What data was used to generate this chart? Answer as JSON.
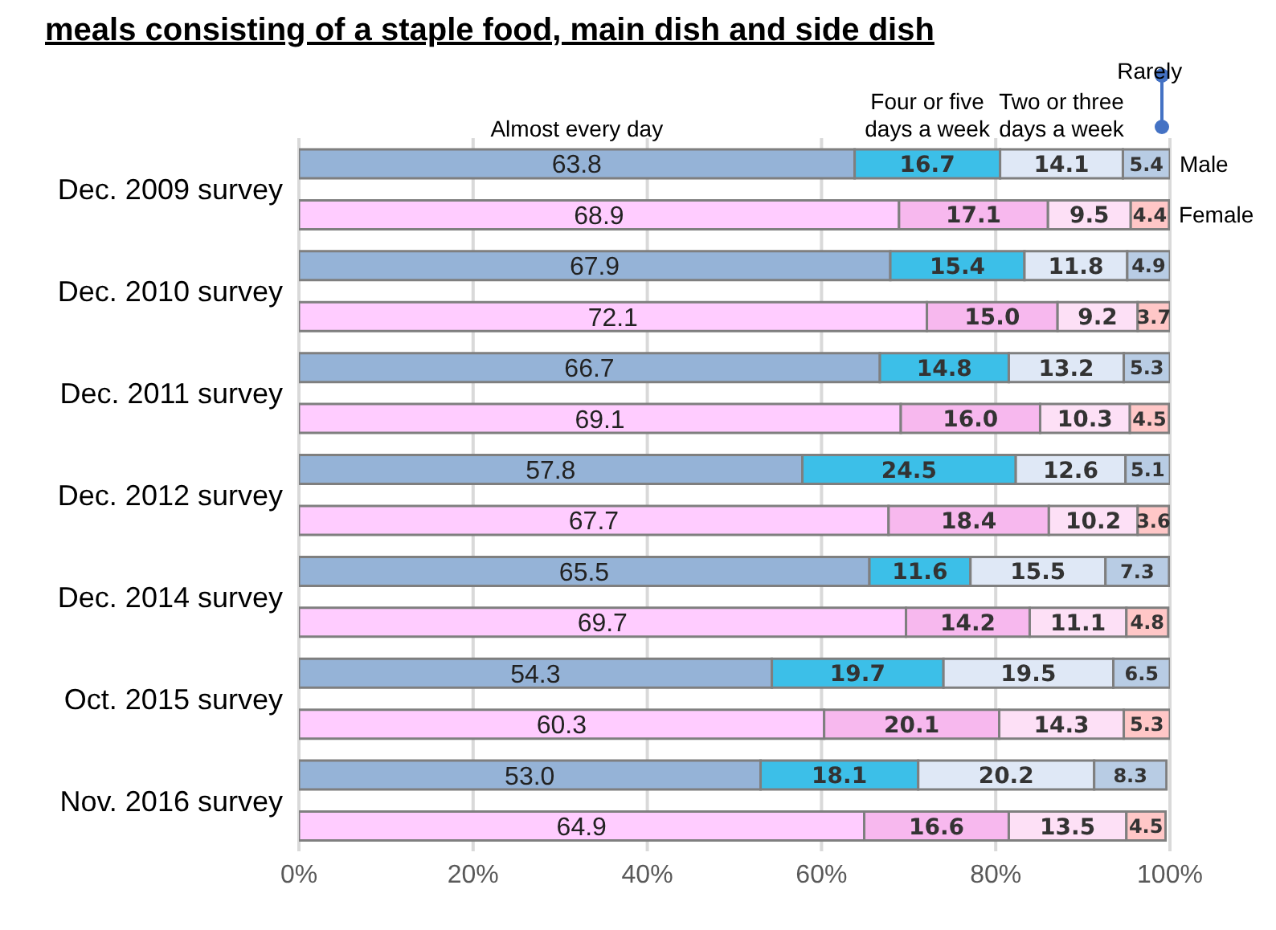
{
  "chart_data": {
    "type": "bar",
    "orientation": "horizontal",
    "stacked": true,
    "title": "meals consisting of a staple food, main dish and side dish",
    "categories": [
      "Dec. 2009 survey",
      null,
      "Dec. 2010 survey",
      null,
      "Dec. 2011 survey",
      null,
      "Dec. 2012 survey",
      null,
      "Dec. 2014 survey",
      null,
      "Oct. 2015 survey",
      null,
      "Nov. 2016 survey",
      null
    ],
    "series": [
      {
        "name": "Almost every day",
        "colors": [
          "#95b3d7",
          "#ffccff",
          "#95b3d7",
          "#ffccff",
          "#95b3d7",
          "#ffccff",
          "#95b3d7",
          "#ffccff",
          "#95b3d7",
          "#ffccff",
          "#95b3d7",
          "#ffccff",
          "#95b3d7",
          "#ffccff"
        ],
        "values": [
          63.8,
          68.9,
          67.9,
          72.1,
          66.7,
          69.1,
          57.8,
          67.7,
          65.5,
          69.7,
          54.3,
          60.3,
          53.0,
          64.9
        ],
        "value_labels": [
          "63.8",
          "68.9",
          "67.9",
          "72.1",
          "66.7",
          "69.1",
          "57.8",
          "67.7",
          "65.5",
          "69.7",
          "54.3",
          "60.3",
          "53.0",
          "64.9"
        ]
      },
      {
        "name": "Four or five days a week",
        "colors": [
          "#3cbfe8",
          "#f7b8ee",
          "#3cbfe8",
          "#f7b8ee",
          "#3cbfe8",
          "#f7b8ee",
          "#3cbfe8",
          "#f7b8ee",
          "#3cbfe8",
          "#f7b8ee",
          "#3cbfe8",
          "#f7b8ee",
          "#3cbfe8",
          "#f7b8ee"
        ],
        "values": [
          16.7,
          17.1,
          15.4,
          15.0,
          14.8,
          16.0,
          24.5,
          18.4,
          11.6,
          14.2,
          19.7,
          20.1,
          18.1,
          16.6
        ],
        "value_labels": [
          "16.7",
          "17.1",
          "15.4",
          "15.0",
          "14.8",
          "16.0",
          "24.5",
          "18.4",
          "11.6",
          "14.2",
          "19.7",
          "20.1",
          "18.1",
          "16.6"
        ]
      },
      {
        "name": "Two or three days a week",
        "colors": [
          "#dfe8f6",
          "#fde0f6",
          "#dfe8f6",
          "#fde0f6",
          "#dfe8f6",
          "#fde0f6",
          "#dfe8f6",
          "#fde0f6",
          "#dfe8f6",
          "#fde0f6",
          "#dfe8f6",
          "#fde0f6",
          "#dfe8f6",
          "#fde0f6"
        ],
        "values": [
          14.1,
          9.5,
          11.8,
          9.2,
          13.2,
          10.3,
          12.6,
          10.2,
          15.5,
          11.1,
          19.5,
          14.3,
          20.2,
          13.5
        ],
        "value_labels": [
          "14.1",
          "9.5",
          "11.8",
          "9.2",
          "13.2",
          "10.3",
          "12.6",
          "10.2",
          "15.5",
          "11.1",
          "19.5",
          "14.3",
          "20.2",
          "13.5"
        ]
      },
      {
        "name": "Rarely",
        "colors": [
          "#b8cce4",
          "#ffc7c7",
          "#b8cce4",
          "#ffc7c7",
          "#b8cce4",
          "#ffc7c7",
          "#b8cce4",
          "#ffc7c7",
          "#b8cce4",
          "#ffc7c7",
          "#b8cce4",
          "#ffc7c7",
          "#b8cce4",
          "#ffc7c7"
        ],
        "values": [
          5.4,
          4.4,
          4.9,
          3.7,
          5.3,
          4.5,
          5.1,
          3.6,
          7.3,
          4.8,
          6.5,
          5.3,
          8.3,
          4.5
        ],
        "value_labels": [
          "5.4",
          "4.4",
          "4.9",
          "3.7",
          "5.3",
          "4.5",
          "5.1",
          "3.6",
          "7.3",
          "4.8",
          "6.5",
          "5.3",
          "8.3",
          "4.5"
        ]
      }
    ],
    "annotations": [
      "Male",
      "Female"
    ],
    "xlim": [
      0,
      100
    ],
    "xticks": [
      {
        "value": 0,
        "label": "0%"
      },
      {
        "value": 20,
        "label": "20%"
      },
      {
        "value": 40,
        "label": "40%"
      },
      {
        "value": 60,
        "label": "60%"
      },
      {
        "value": 80,
        "label": "80%"
      },
      {
        "value": 100,
        "label": "100%"
      }
    ],
    "grid": "x"
  }
}
